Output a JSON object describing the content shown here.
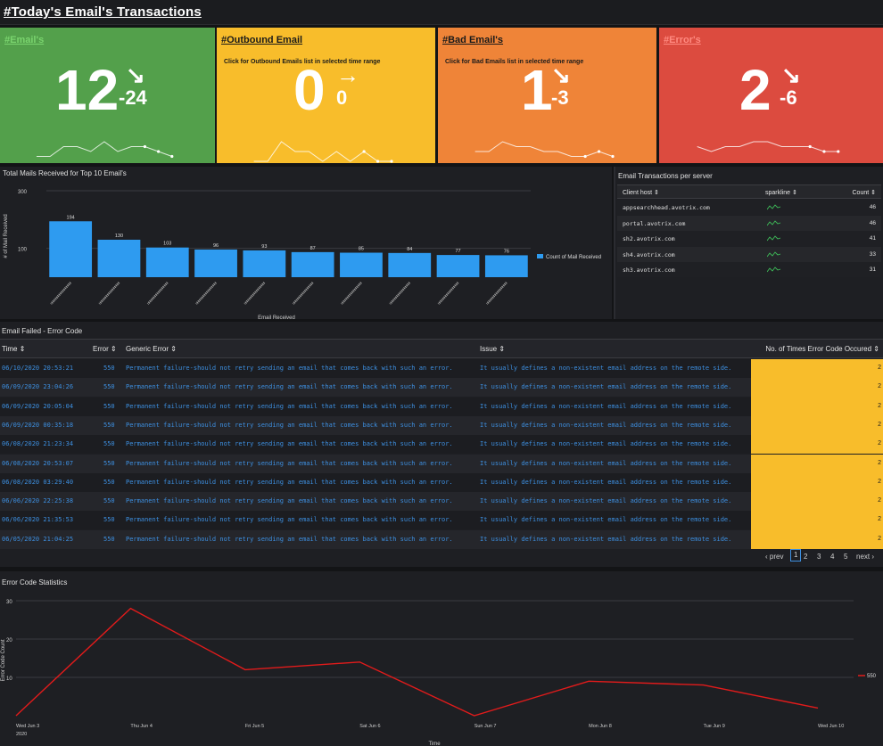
{
  "header": {
    "title": "#Today's Email's Transactions"
  },
  "kpis": {
    "emails": {
      "title": "#Email's",
      "value": "12",
      "arrow": "↘",
      "delta": "-24",
      "bg": "#53a04b",
      "title_color": "#7ad46e"
    },
    "outbound": {
      "title": "#Outbound Email",
      "subtitle": "Click for Outbound Emails list in selected time range",
      "value": "0",
      "arrow": "→",
      "delta": "0",
      "bg": "#f8bd2b",
      "title_color": "#1a1a1a"
    },
    "bad": {
      "title": "#Bad Email's",
      "subtitle": "Click for Bad Emails list in selected time range",
      "value": "1",
      "arrow": "↘",
      "delta": "-3",
      "bg": "#ef8438",
      "title_color": "#1a1a1a"
    },
    "errors": {
      "title": "#Error's",
      "value": "2",
      "arrow": "↘",
      "delta": "-6",
      "bg": "#dc4b3f",
      "title_color": "#ff8a80"
    }
  },
  "bar_panel": {
    "title": "Total Mails Received for Top 10 Email's",
    "legend": "Count of Mail Received"
  },
  "server_panel": {
    "title": "Email Transactions per server",
    "columns": {
      "host": "Client host ⇕",
      "sparkline": "sparkline ⇕",
      "count": "Count ⇕"
    },
    "rows": [
      {
        "host": "appsearchhead.avotrix.com",
        "count": "46"
      },
      {
        "host": "portal.avotrix.com",
        "count": "46"
      },
      {
        "host": "sh2.avotrix.com",
        "count": "41"
      },
      {
        "host": "sh4.avotrix.com",
        "count": "33"
      },
      {
        "host": "sh3.avotrix.com",
        "count": "31"
      }
    ]
  },
  "error_panel": {
    "title": "Email Failed - Error Code",
    "columns": {
      "time": "Time ⇕",
      "error": "Error ⇕",
      "generic": "Generic Error ⇕",
      "issue": "Issue ⇕",
      "count": "No. of Times Error Code Occured ⇕"
    },
    "rows": [
      {
        "time": "06/10/2020 20:53:21",
        "error": "550",
        "generic": "Permanent failure-should not retry sending an email that comes back with such an error.",
        "issue": "It usually defines a non-existent email address on the remote side.",
        "count": "2"
      },
      {
        "time": "06/09/2020 23:04:26",
        "error": "550",
        "generic": "Permanent failure-should not retry sending an email that comes back with such an error.",
        "issue": "It usually defines a non-existent email address on the remote side.",
        "count": "2"
      },
      {
        "time": "06/09/2020 20:05:04",
        "error": "550",
        "generic": "Permanent failure-should not retry sending an email that comes back with such an error.",
        "issue": "It usually defines a non-existent email address on the remote side.",
        "count": "2"
      },
      {
        "time": "06/09/2020 00:35:18",
        "error": "550",
        "generic": "Permanent failure-should not retry sending an email that comes back with such an error.",
        "issue": "It usually defines a non-existent email address on the remote side.",
        "count": "2"
      },
      {
        "time": "06/08/2020 21:23:34",
        "error": "550",
        "generic": "Permanent failure-should not retry sending an email that comes back with such an error.",
        "issue": "It usually defines a non-existent email address on the remote side.",
        "count": "2"
      },
      {
        "time": "06/08/2020 20:53:07",
        "error": "550",
        "generic": "Permanent failure-should not retry sending an email that comes back with such an error.",
        "issue": "It usually defines a non-existent email address on the remote side.",
        "count": "2"
      },
      {
        "time": "06/08/2020 03:29:40",
        "error": "550",
        "generic": "Permanent failure-should not retry sending an email that comes back with such an error.",
        "issue": "It usually defines a non-existent email address on the remote side.",
        "count": "2"
      },
      {
        "time": "06/06/2020 22:25:38",
        "error": "550",
        "generic": "Permanent failure-should not retry sending an email that comes back with such an error.",
        "issue": "It usually defines a non-existent email address on the remote side.",
        "count": "2"
      },
      {
        "time": "06/06/2020 21:35:53",
        "error": "550",
        "generic": "Permanent failure-should not retry sending an email that comes back with such an error.",
        "issue": "It usually defines a non-existent email address on the remote side.",
        "count": "2"
      },
      {
        "time": "06/05/2020 21:04:25",
        "error": "550",
        "generic": "Permanent failure-should not retry sending an email that comes back with such an error.",
        "issue": "It usually defines a non-existent email address on the remote side.",
        "count": "2"
      }
    ],
    "pager": {
      "prev": "‹ prev",
      "pages": [
        "1",
        "2",
        "3",
        "4",
        "5"
      ],
      "next": "next ›",
      "current": "1"
    },
    "count_bg": "#f8bd2b"
  },
  "line_panel": {
    "title": "Error Code Statistics"
  },
  "chart_data": [
    {
      "type": "bar",
      "title": "Total Mails Received for Top 10 Email's",
      "xlabel": "Email Received",
      "ylabel": "# of Mail Received",
      "ylim": [
        0,
        300
      ],
      "yticks": [
        "300",
        "100"
      ],
      "series": [
        {
          "name": "Count of Mail Received",
          "values": [
            194,
            130,
            103,
            96,
            93,
            87,
            85,
            84,
            77,
            76
          ]
        }
      ],
      "value_labels": [
        "194",
        "130",
        "103",
        "96",
        "93",
        "87",
        "85",
        "84",
        "77",
        "76"
      ],
      "color": "#2e9bf0",
      "grid": true
    },
    {
      "type": "line",
      "title": "Error Code Statistics",
      "xlabel": "Time",
      "ylabel": "Error Code Count",
      "x": [
        "Wed Jun 3",
        "Thu Jun 4",
        "Fri Jun 5",
        "Sat Jun 6",
        "Sun Jun 7",
        "Mon Jun 8",
        "Tue Jun 9",
        "Wed Jun 10"
      ],
      "x_sub": "2020",
      "ylim": [
        0,
        30
      ],
      "yticks": [
        "30",
        "20",
        "10"
      ],
      "series": [
        {
          "name": "550",
          "values": [
            0,
            28,
            12,
            14,
            0,
            9,
            8,
            2
          ]
        }
      ],
      "color": "#e21b1b",
      "legend": "right"
    }
  ],
  "sparklines": {
    "emails": [
      1,
      1,
      3,
      3,
      2,
      4,
      2,
      3,
      3,
      2,
      1
    ],
    "outbound": [
      0,
      0,
      2,
      1,
      1,
      0,
      1,
      0,
      1,
      0,
      0
    ],
    "bad": [
      2,
      2,
      4,
      3,
      3,
      2,
      2,
      1,
      1,
      2,
      1
    ],
    "errors": [
      3,
      2,
      3,
      3,
      4,
      4,
      3,
      3,
      3,
      2,
      2
    ]
  }
}
